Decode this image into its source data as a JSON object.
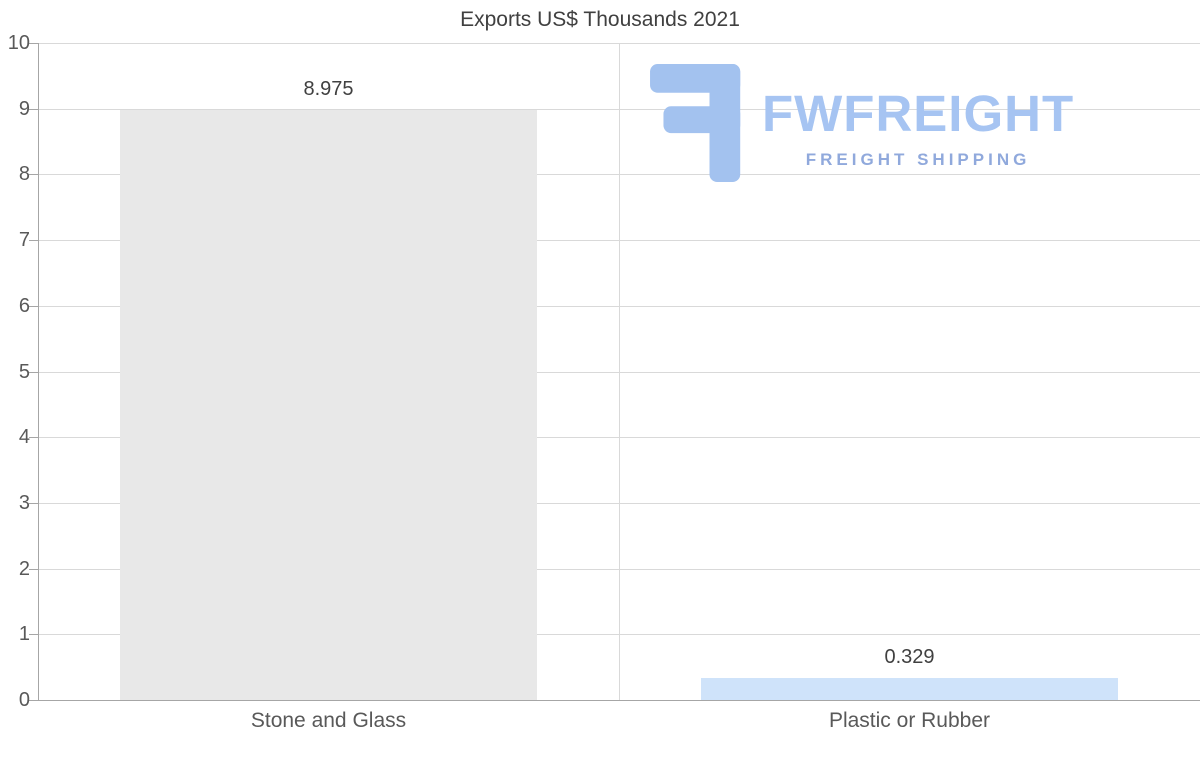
{
  "chart_data": {
    "type": "bar",
    "title": "Exports US$ Thousands 2021",
    "categories": [
      "Stone and Glass",
      "Plastic or Rubber"
    ],
    "values": [
      8.975,
      0.329
    ],
    "value_labels": [
      "8.975",
      "0.329"
    ],
    "bar_colors": [
      "#e8e8e8",
      "#cfe3fa"
    ],
    "ylim": [
      0,
      10
    ],
    "yticks": [
      0,
      1,
      2,
      3,
      4,
      5,
      6,
      7,
      8,
      9,
      10
    ],
    "grid": true,
    "legend": "none",
    "xlabel": "",
    "ylabel": ""
  },
  "logo": {
    "brand": "FWFREIGHT",
    "tagline": "FREIGHT SHIPPING",
    "brand_color": "#a6c4f2",
    "tagline_color": "#90a9dc",
    "icon": "fwfreight-f-icon",
    "icon_color": "#a3c2ef"
  },
  "colors": {
    "background": "#ffffff",
    "gridline": "#d9d9d9",
    "axis": "#a6a6a6",
    "title_text": "#404040",
    "tick_text": "#595959",
    "value_text": "#404040",
    "category_text": "#595959"
  }
}
